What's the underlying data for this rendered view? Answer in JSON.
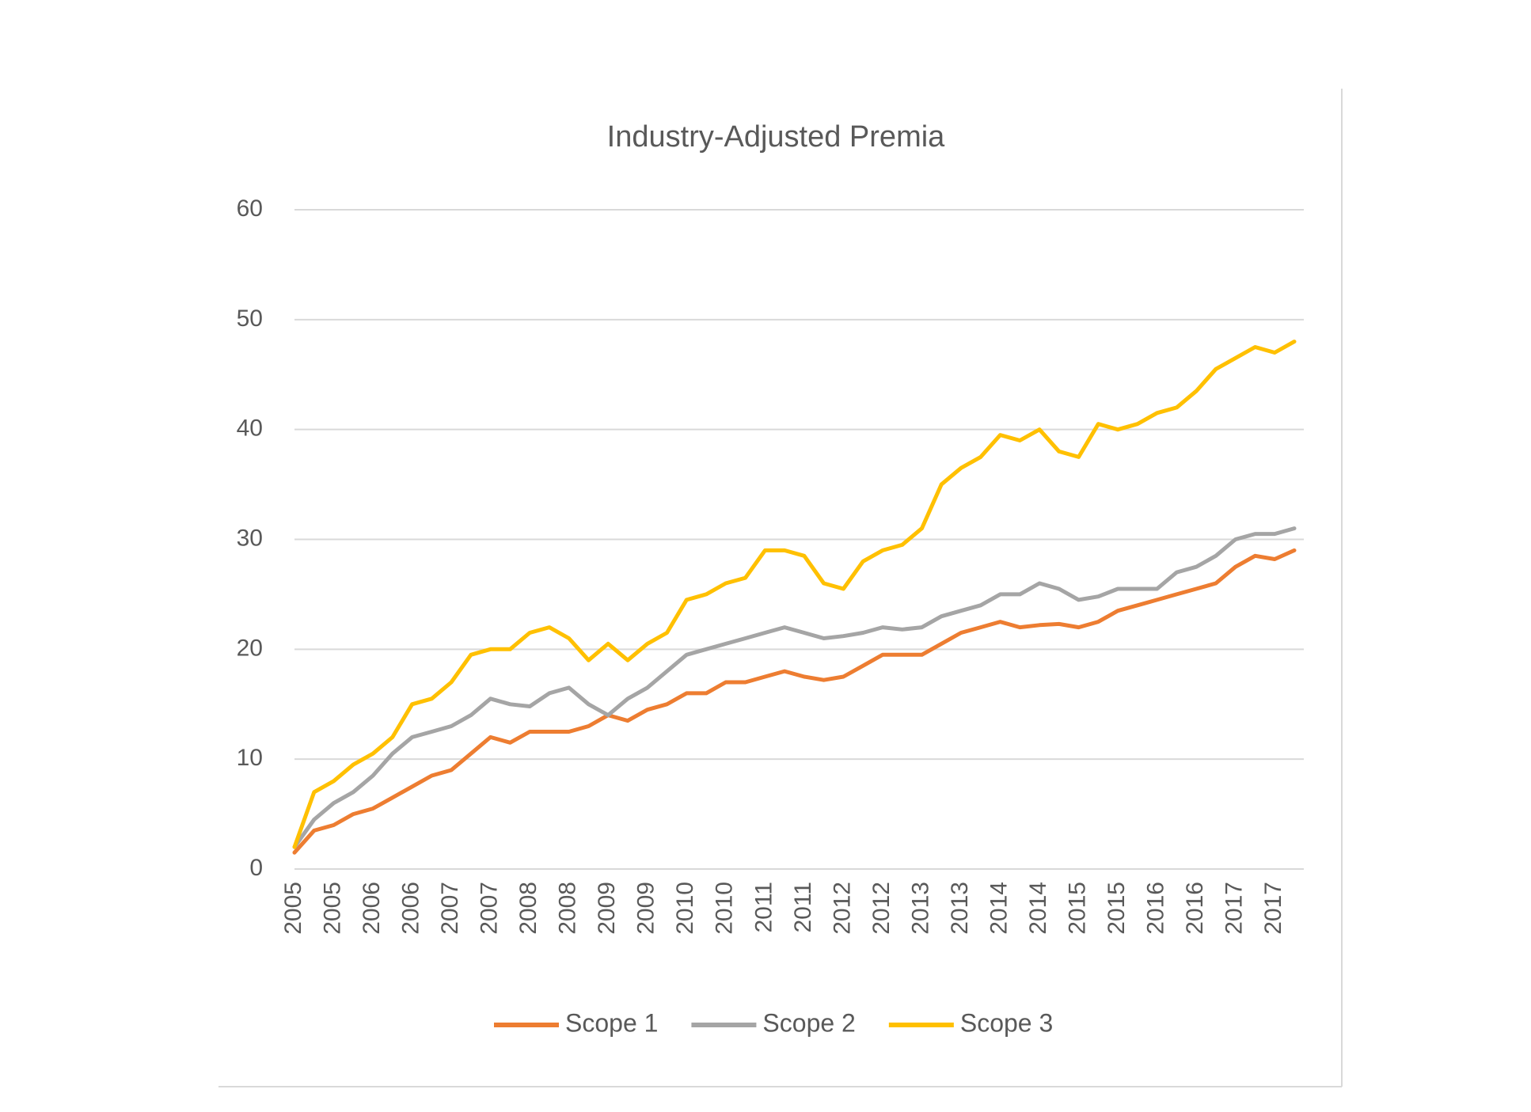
{
  "chart_data": {
    "type": "line",
    "title": "Industry-Adjusted Premia",
    "categories": [
      "2005",
      null,
      "2005",
      null,
      "2006",
      null,
      "2006",
      null,
      "2007",
      null,
      "2007",
      null,
      "2008",
      null,
      "2008",
      null,
      "2009",
      null,
      "2009",
      null,
      "2010",
      null,
      "2010",
      null,
      "2011",
      null,
      "2011",
      null,
      "2012",
      null,
      "2012",
      null,
      "2013",
      null,
      "2013",
      null,
      "2014",
      null,
      "2014",
      null,
      "2015",
      null,
      "2015",
      null,
      "2016",
      null,
      "2016",
      null,
      "2017",
      null,
      "2017",
      null
    ],
    "series": [
      {
        "name": "Scope 1",
        "color": "#ED7D31",
        "values": [
          1.5,
          3.5,
          4,
          5,
          5.5,
          6.5,
          7.5,
          8.5,
          9,
          10.5,
          12,
          11.5,
          12.5,
          12.5,
          12.5,
          13,
          14,
          13.5,
          14.5,
          15,
          16,
          16,
          17,
          17,
          17.5,
          18,
          17.5,
          17.2,
          17.5,
          18.5,
          19.5,
          19.5,
          19.5,
          20.5,
          21.5,
          22,
          22.5,
          22,
          22.2,
          22.3,
          22,
          22.5,
          23.5,
          24,
          24.5,
          25,
          25.5,
          26,
          27.5,
          28.5,
          28.2,
          29
        ]
      },
      {
        "name": "Scope 2",
        "color": "#A5A5A5",
        "values": [
          2,
          4.5,
          6,
          7,
          8.5,
          10.5,
          12,
          12.5,
          13,
          14,
          15.5,
          15,
          14.8,
          16,
          16.5,
          15,
          14,
          15.5,
          16.5,
          18,
          19.5,
          20,
          20.5,
          21,
          21.5,
          22,
          21.5,
          21,
          21.2,
          21.5,
          22,
          21.8,
          22,
          23,
          23.5,
          24,
          25,
          25,
          26,
          25.5,
          24.5,
          24.8,
          25.5,
          25.5,
          25.5,
          27,
          27.5,
          28.5,
          30,
          30.5,
          30.5,
          31
        ]
      },
      {
        "name": "Scope 3",
        "color": "#FFC000",
        "values": [
          2,
          7,
          8,
          9.5,
          10.5,
          12,
          15,
          15.5,
          17,
          19.5,
          20,
          20,
          21.5,
          22,
          21,
          19,
          20.5,
          19,
          20.5,
          21.5,
          24.5,
          25,
          26,
          26.5,
          29,
          29,
          28.5,
          26,
          25.5,
          28,
          29,
          29.5,
          31,
          35,
          36.5,
          37.5,
          39.5,
          39,
          40,
          38,
          37.5,
          40.5,
          40,
          40.5,
          41.5,
          42,
          43.5,
          45.5,
          46.5,
          47.5,
          47,
          48
        ]
      }
    ],
    "ylim": [
      0,
      60
    ],
    "yticks": [
      0,
      10,
      20,
      30,
      40,
      50,
      60
    ],
    "grid": true
  }
}
